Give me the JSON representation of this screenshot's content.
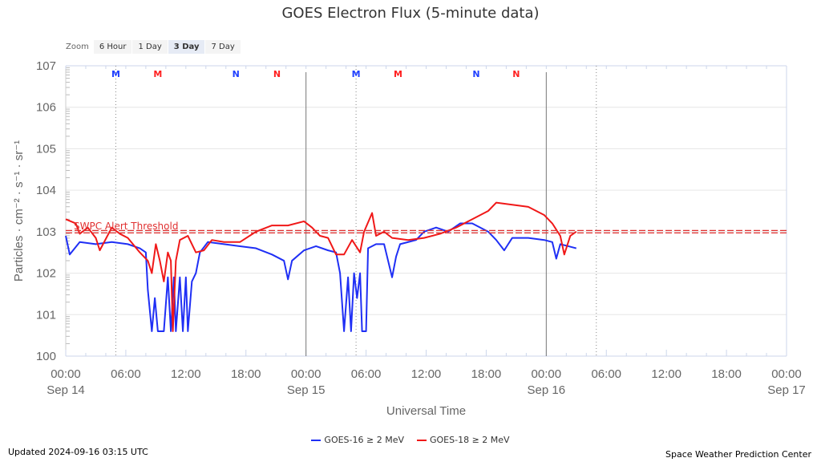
{
  "chart_data": {
    "type": "line",
    "title": "GOES Electron Flux (5-minute data)",
    "xlabel": "Universal Time",
    "ylabel": "Particles · cm⁻² · s⁻¹ · sr⁻¹",
    "yscale": "log",
    "ylim_log10": [
      0,
      7
    ],
    "y_ticks": [
      {
        "base": "10",
        "exp": "0"
      },
      {
        "base": "10",
        "exp": "1"
      },
      {
        "base": "10",
        "exp": "2"
      },
      {
        "base": "10",
        "exp": "3"
      },
      {
        "base": "10",
        "exp": "4"
      },
      {
        "base": "10",
        "exp": "5"
      },
      {
        "base": "10",
        "exp": "6"
      },
      {
        "base": "10",
        "exp": "7"
      }
    ],
    "xlim_hours": [
      0,
      72
    ],
    "x_ticks": [
      {
        "h": 0,
        "time": "00:00",
        "date": "Sep 14"
      },
      {
        "h": 6,
        "time": "06:00",
        "date": ""
      },
      {
        "h": 12,
        "time": "12:00",
        "date": ""
      },
      {
        "h": 18,
        "time": "18:00",
        "date": ""
      },
      {
        "h": 24,
        "time": "00:00",
        "date": "Sep 15"
      },
      {
        "h": 30,
        "time": "06:00",
        "date": ""
      },
      {
        "h": 36,
        "time": "12:00",
        "date": ""
      },
      {
        "h": 42,
        "time": "18:00",
        "date": ""
      },
      {
        "h": 48,
        "time": "00:00",
        "date": "Sep 16"
      },
      {
        "h": 54,
        "time": "06:00",
        "date": ""
      },
      {
        "h": 60,
        "time": "12:00",
        "date": ""
      },
      {
        "h": 66,
        "time": "18:00",
        "date": ""
      },
      {
        "h": 72,
        "time": "00:00",
        "date": "Sep 17"
      }
    ],
    "threshold": {
      "label": "SWPC Alert Threshold",
      "log10": 3,
      "color": "#e03030"
    },
    "day_lines_hours": [
      24,
      48
    ],
    "dotted_lines_hours": [
      5,
      29,
      53
    ],
    "markers": [
      {
        "h": 5,
        "label": "M",
        "color": "#2040ff"
      },
      {
        "h": 9.2,
        "label": "M",
        "color": "#ff2020"
      },
      {
        "h": 17,
        "label": "N",
        "color": "#2040ff"
      },
      {
        "h": 21.1,
        "label": "N",
        "color": "#ff2020"
      },
      {
        "h": 29,
        "label": "M",
        "color": "#2040ff"
      },
      {
        "h": 33.2,
        "label": "M",
        "color": "#ff2020"
      },
      {
        "h": 41,
        "label": "N",
        "color": "#2040ff"
      },
      {
        "h": 45,
        "label": "N",
        "color": "#ff2020"
      }
    ],
    "series": [
      {
        "name": "GOES-16 ≥ 2 MeV",
        "color": "#1f2ff5",
        "points": [
          [
            0,
            2.9
          ],
          [
            0.4,
            2.45
          ],
          [
            1.4,
            2.75
          ],
          [
            3,
            2.7
          ],
          [
            4.6,
            2.75
          ],
          [
            6.2,
            2.7
          ],
          [
            7.4,
            2.6
          ],
          [
            8,
            2.5
          ],
          [
            8.2,
            1.6
          ],
          [
            8.6,
            0.6
          ],
          [
            8.9,
            1.4
          ],
          [
            9.2,
            0.6
          ],
          [
            9.8,
            0.6
          ],
          [
            10.2,
            1.9
          ],
          [
            10.5,
            0.6
          ],
          [
            10.8,
            1.9
          ],
          [
            11,
            0.6
          ],
          [
            11.4,
            1.9
          ],
          [
            11.7,
            0.6
          ],
          [
            12,
            1.9
          ],
          [
            12.2,
            0.6
          ],
          [
            12.6,
            1.8
          ],
          [
            13,
            2.0
          ],
          [
            13.4,
            2.5
          ],
          [
            14.2,
            2.75
          ],
          [
            15.8,
            2.7
          ],
          [
            17.4,
            2.65
          ],
          [
            19,
            2.6
          ],
          [
            20.6,
            2.45
          ],
          [
            21.8,
            2.3
          ],
          [
            22.2,
            1.85
          ],
          [
            22.6,
            2.3
          ],
          [
            23.8,
            2.55
          ],
          [
            25,
            2.65
          ],
          [
            26.2,
            2.55
          ],
          [
            27,
            2.5
          ],
          [
            27.4,
            2.0
          ],
          [
            27.8,
            0.6
          ],
          [
            28.2,
            1.9
          ],
          [
            28.5,
            0.6
          ],
          [
            28.8,
            2.0
          ],
          [
            29.1,
            1.4
          ],
          [
            29.4,
            2.0
          ],
          [
            29.6,
            0.6
          ],
          [
            30,
            0.6
          ],
          [
            30.2,
            2.6
          ],
          [
            31,
            2.7
          ],
          [
            31.8,
            2.7
          ],
          [
            32.2,
            2.3
          ],
          [
            32.6,
            1.9
          ],
          [
            33,
            2.4
          ],
          [
            33.4,
            2.7
          ],
          [
            35,
            2.8
          ],
          [
            35.8,
            3.0
          ],
          [
            37,
            3.1
          ],
          [
            38.2,
            3.0
          ],
          [
            39.4,
            3.2
          ],
          [
            40.6,
            3.2
          ],
          [
            42.2,
            3.0
          ],
          [
            43,
            2.8
          ],
          [
            43.8,
            2.55
          ],
          [
            44.6,
            2.85
          ],
          [
            46.2,
            2.85
          ],
          [
            47.8,
            2.8
          ],
          [
            48.6,
            2.75
          ],
          [
            49,
            2.35
          ],
          [
            49.4,
            2.7
          ],
          [
            50.2,
            2.65
          ],
          [
            51,
            2.6
          ]
        ]
      },
      {
        "name": "GOES-18 ≥ 2 MeV",
        "color": "#f01818",
        "points": [
          [
            0,
            3.3
          ],
          [
            1,
            3.2
          ],
          [
            1.4,
            2.95
          ],
          [
            2.2,
            3.1
          ],
          [
            3,
            2.85
          ],
          [
            3.4,
            2.55
          ],
          [
            4.6,
            3.1
          ],
          [
            5.4,
            2.95
          ],
          [
            6.2,
            2.85
          ],
          [
            7.4,
            2.5
          ],
          [
            8.2,
            2.3
          ],
          [
            8.6,
            2.0
          ],
          [
            9,
            2.7
          ],
          [
            9.4,
            2.3
          ],
          [
            9.8,
            1.8
          ],
          [
            10.2,
            2.5
          ],
          [
            10.5,
            2.3
          ],
          [
            10.7,
            0.6
          ],
          [
            11,
            2.3
          ],
          [
            11.4,
            2.8
          ],
          [
            12.2,
            2.9
          ],
          [
            13,
            2.5
          ],
          [
            13.8,
            2.55
          ],
          [
            14.6,
            2.8
          ],
          [
            15.8,
            2.75
          ],
          [
            17.4,
            2.75
          ],
          [
            19,
            3.0
          ],
          [
            20.6,
            3.15
          ],
          [
            22.2,
            3.15
          ],
          [
            23.8,
            3.25
          ],
          [
            24.6,
            3.1
          ],
          [
            25.4,
            2.9
          ],
          [
            26.2,
            2.85
          ],
          [
            27,
            2.45
          ],
          [
            27.8,
            2.45
          ],
          [
            28.6,
            2.8
          ],
          [
            29.4,
            2.5
          ],
          [
            29.8,
            3.0
          ],
          [
            30.6,
            3.45
          ],
          [
            31,
            2.9
          ],
          [
            31.8,
            3.0
          ],
          [
            32.6,
            2.85
          ],
          [
            34.2,
            2.8
          ],
          [
            35.8,
            2.85
          ],
          [
            37.4,
            2.95
          ],
          [
            39,
            3.1
          ],
          [
            40.6,
            3.3
          ],
          [
            42.2,
            3.5
          ],
          [
            43,
            3.7
          ],
          [
            44.6,
            3.65
          ],
          [
            46.2,
            3.6
          ],
          [
            47.8,
            3.4
          ],
          [
            48.6,
            3.2
          ],
          [
            49.4,
            2.9
          ],
          [
            49.8,
            2.45
          ],
          [
            50.4,
            2.9
          ],
          [
            51,
            3.0
          ]
        ]
      }
    ]
  },
  "zoom": {
    "label": "Zoom",
    "buttons": [
      "6 Hour",
      "1 Day",
      "3 Day",
      "7 Day"
    ],
    "active": "3 Day"
  },
  "legend": [
    "GOES-16 ≥ 2 MeV",
    "GOES-18 ≥ 2 MeV"
  ],
  "footer": {
    "updated": "Updated 2024-09-16 03:15 UTC",
    "credit": "Space Weather Prediction Center"
  }
}
